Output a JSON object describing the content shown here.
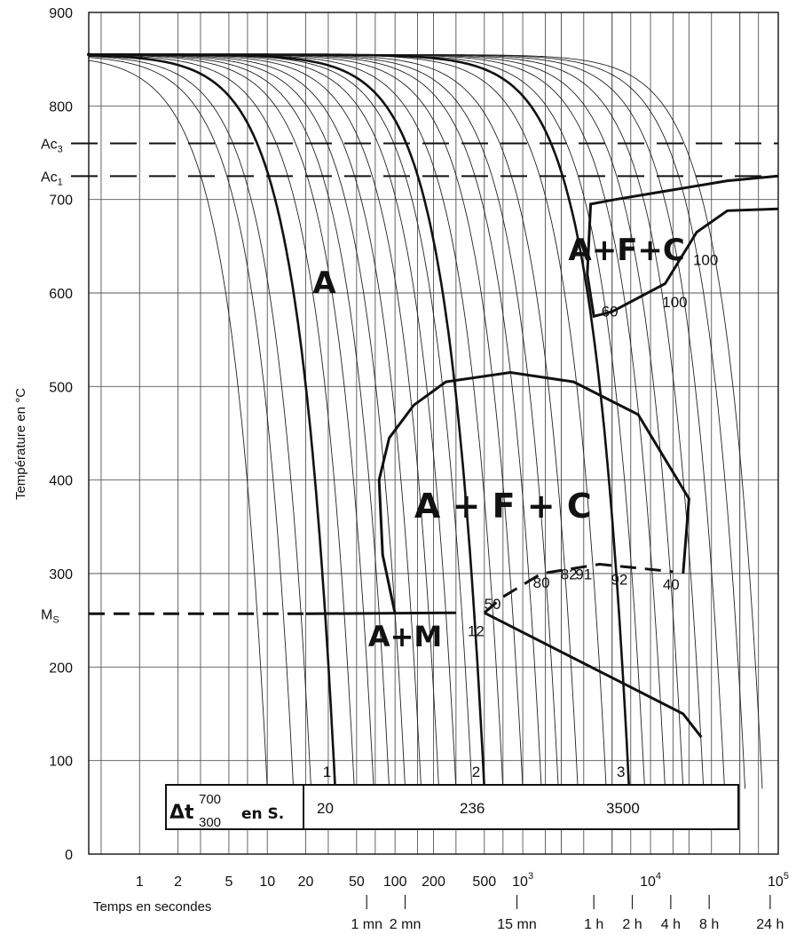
{
  "chart_data": {
    "type": "line",
    "title": "",
    "ylabel": "Température en °C",
    "xlabel": "Temps en secondes",
    "x_scale": "log",
    "xlim_s": [
      0.4,
      100000
    ],
    "ylim": [
      0,
      900
    ],
    "y_ticks": [
      "900",
      "800",
      "700",
      "600",
      "500",
      "400",
      "300",
      "200",
      "100",
      "0"
    ],
    "y_special_labels": [
      {
        "label": "Ac",
        "sub": "3",
        "value": 760
      },
      {
        "label": "Ac",
        "sub": "1",
        "value": 725
      },
      {
        "label": "M",
        "sub": "S",
        "value": 257
      }
    ],
    "x_ticks_seconds": [
      {
        "label": "1",
        "value": 1
      },
      {
        "label": "2",
        "value": 2
      },
      {
        "label": "5",
        "value": 5
      },
      {
        "label": "10",
        "value": 10
      },
      {
        "label": "20",
        "value": 20
      },
      {
        "label": "50",
        "value": 50
      },
      {
        "label": "100",
        "value": 100
      },
      {
        "label": "200",
        "value": 200
      },
      {
        "label": "500",
        "value": 500
      },
      {
        "label": "10",
        "sup": "3",
        "value": 1000
      },
      {
        "label": "10",
        "sup": "4",
        "value": 10000
      },
      {
        "label": "10",
        "sup": "5",
        "value": 100000
      }
    ],
    "x_ticks_time": [
      {
        "label": "1 mn",
        "value": 60
      },
      {
        "label": "2 mn",
        "value": 120
      },
      {
        "label": "15 mn",
        "value": 900
      },
      {
        "label": "1 h",
        "value": 3600
      },
      {
        "label": "2 h",
        "value": 7200
      },
      {
        "label": "4 h",
        "value": 14400
      },
      {
        "label": "8 h",
        "value": 28800
      },
      {
        "label": "24 h",
        "value": 86400
      }
    ],
    "regions": [
      {
        "label": "A",
        "t": 28,
        "T": 600
      },
      {
        "label": "A+F+C",
        "t": 6500,
        "T": 635
      },
      {
        "label": "A + F + C",
        "t": 700,
        "T": 360
      },
      {
        "label": "A+M",
        "t": 120,
        "T": 222
      }
    ],
    "transformation_percent_labels": [
      {
        "label": "60",
        "t": 4800,
        "T": 575
      },
      {
        "label": "100",
        "t": 15500,
        "T": 585
      },
      {
        "label": "100",
        "t": 27000,
        "T": 630
      },
      {
        "label": "12",
        "t": 430,
        "T": 233
      },
      {
        "label": "50",
        "t": 580,
        "T": 262
      },
      {
        "label": "80",
        "t": 1400,
        "T": 285
      },
      {
        "label": "82",
        "t": 2300,
        "T": 294
      },
      {
        "label": "91",
        "t": 3000,
        "T": 294
      },
      {
        "label": "92",
        "t": 5700,
        "T": 288
      },
      {
        "label": "40",
        "t": 14500,
        "T": 283
      }
    ],
    "numbered_curves": [
      {
        "label": "1",
        "t_end": 34,
        "dt_700_300": "20"
      },
      {
        "label": "2",
        "t_end": 500,
        "dt_700_300": "236"
      },
      {
        "label": "3",
        "t_end": 6800,
        "dt_700_300": "3500"
      }
    ],
    "dt_table": {
      "header": "Δt",
      "header_sup": "700",
      "header_sub": "300",
      "header_unit": "en S.",
      "values": [
        "20",
        "236",
        "3500"
      ]
    },
    "austenitization_temperature": 855
  }
}
